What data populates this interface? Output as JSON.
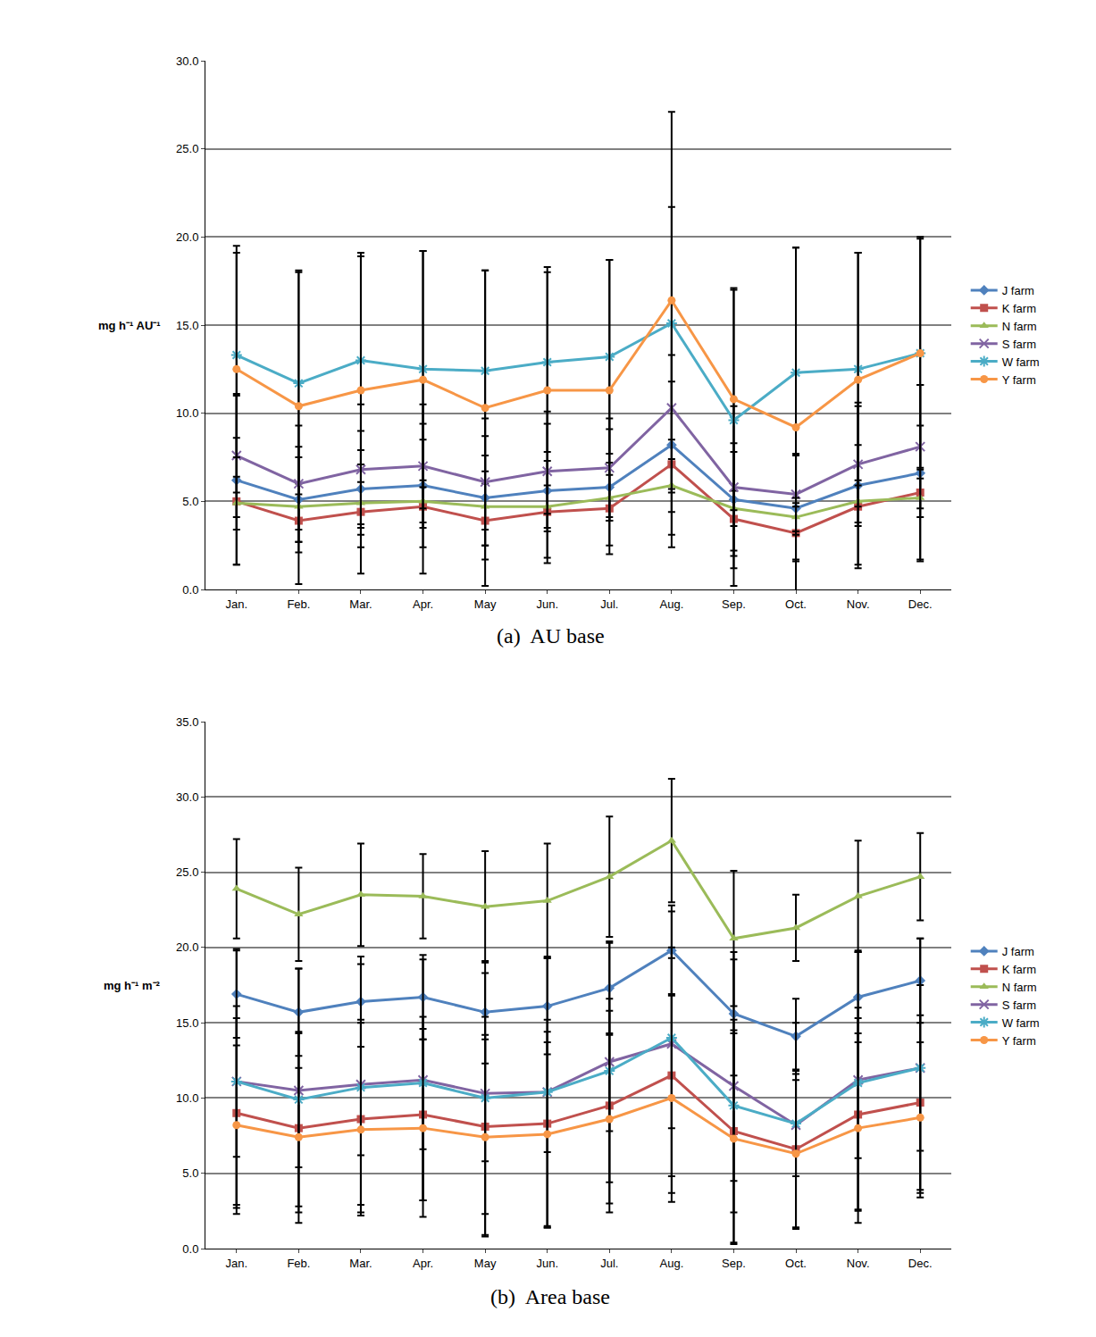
{
  "chart_data": [
    {
      "type": "line",
      "title": "(a)  AU base",
      "y_label": "mg h⁻¹ AU⁻¹",
      "categories": [
        "Jan.",
        "Feb.",
        "Mar.",
        "Apr.",
        "May",
        "Jun.",
        "Jul.",
        "Aug.",
        "Sep.",
        "Oct.",
        "Nov.",
        "Dec."
      ],
      "ylim": [
        0,
        30
      ],
      "yticks": [
        {
          "value": 0,
          "label": "0.0"
        },
        {
          "value": 5,
          "label": "5.0"
        },
        {
          "value": 10,
          "label": "10.0"
        },
        {
          "value": 15,
          "label": "15.0"
        },
        {
          "value": 20,
          "label": "20.0"
        },
        {
          "value": 25,
          "label": "25.0"
        },
        {
          "value": 30,
          "label": "30.0"
        }
      ],
      "grid": true,
      "legend": "right",
      "series": [
        {
          "name": "J farm",
          "color": "#4F81BD",
          "marker": "diamond",
          "values": [
            6.2,
            5.1,
            5.7,
            5.9,
            5.2,
            5.6,
            5.8,
            8.2,
            5.1,
            4.6,
            5.9,
            6.6
          ],
          "error": [
            4.8,
            3.0,
            3.3,
            3.5,
            3.5,
            3.8,
            3.3,
            5.1,
            3.2,
            3.0,
            4.5,
            5.0
          ]
        },
        {
          "name": "K farm",
          "color": "#C0504D",
          "marker": "square",
          "values": [
            5.0,
            3.9,
            4.4,
            4.7,
            3.9,
            4.4,
            4.6,
            7.1,
            4.0,
            3.2,
            4.7,
            5.5
          ],
          "error": [
            3.6,
            3.6,
            3.5,
            3.8,
            3.7,
            2.9,
            2.6,
            4.7,
            3.8,
            1.5,
            3.5,
            3.8
          ]
        },
        {
          "name": "N farm",
          "color": "#9BBB59",
          "marker": "triangle",
          "values": [
            4.9,
            4.7,
            4.9,
            5.0,
            4.7,
            4.7,
            5.2,
            5.9,
            4.6,
            4.1,
            5.0,
            5.2
          ],
          "error": [
            1.5,
            1.3,
            1.2,
            1.2,
            1.3,
            1.2,
            1.3,
            1.5,
            1.0,
            0.8,
            1.2,
            1.1
          ]
        },
        {
          "name": "S farm",
          "color": "#8064A2",
          "marker": "x",
          "values": [
            7.6,
            6.0,
            6.8,
            7.0,
            6.1,
            6.7,
            6.9,
            10.3,
            5.8,
            5.4,
            7.1,
            8.1
          ],
          "error": [
            3.5,
            3.3,
            3.7,
            3.5,
            3.6,
            3.4,
            2.8,
            4.8,
            4.6,
            2.3,
            3.5,
            3.5
          ]
        },
        {
          "name": "W farm",
          "color": "#4BACC6",
          "marker": "asterisk",
          "values": [
            13.3,
            11.7,
            13.0,
            12.5,
            12.4,
            12.9,
            13.2,
            15.1,
            9.6,
            12.3,
            12.5,
            13.4
          ],
          "error": [
            5.8,
            6.3,
            5.9,
            6.7,
            5.7,
            5.1,
            5.5,
            6.6,
            7.4,
            7.1,
            6.6,
            6.6
          ]
        },
        {
          "name": "Y farm",
          "color": "#F79646",
          "marker": "circle",
          "values": [
            12.5,
            10.4,
            11.3,
            11.9,
            10.3,
            11.3,
            11.3,
            16.4,
            10.8,
            9.2,
            11.9,
            13.4
          ],
          "error": [
            7.0,
            7.7,
            7.8,
            7.3,
            7.8,
            7.0,
            7.4,
            10.7,
            6.3,
            10.2,
            7.2,
            6.5
          ]
        }
      ]
    },
    {
      "type": "line",
      "title": "(b)  Area base",
      "y_label": "mg h⁻¹ m⁻²",
      "categories": [
        "Jan.",
        "Feb.",
        "Mar.",
        "Apr.",
        "May",
        "Jun.",
        "Jul.",
        "Aug.",
        "Sep.",
        "Oct.",
        "Nov.",
        "Dec."
      ],
      "ylim": [
        0,
        35
      ],
      "yticks": [
        {
          "value": 0,
          "label": "0.0"
        },
        {
          "value": 5,
          "label": "5.0"
        },
        {
          "value": 10,
          "label": "10.0"
        },
        {
          "value": 15,
          "label": "15.0"
        },
        {
          "value": 20,
          "label": "20.0"
        },
        {
          "value": 25,
          "label": "25.0"
        },
        {
          "value": 30,
          "label": "30.0"
        },
        {
          "value": 35,
          "label": "35.0"
        }
      ],
      "grid": true,
      "legend": "right",
      "series": [
        {
          "name": "J farm",
          "color": "#4F81BD",
          "marker": "diamond",
          "values": [
            16.9,
            15.7,
            16.4,
            16.7,
            15.7,
            16.1,
            17.3,
            19.8,
            15.6,
            14.1,
            16.7,
            17.8
          ],
          "error": [
            2.9,
            2.9,
            3.0,
            2.8,
            3.4,
            3.2,
            3.0,
            3.0,
            4.1,
            2.5,
            3.0,
            2.8
          ]
        },
        {
          "name": "K farm",
          "color": "#C0504D",
          "marker": "square",
          "values": [
            9.0,
            8.0,
            8.6,
            8.9,
            8.1,
            8.3,
            9.5,
            11.5,
            7.8,
            6.6,
            8.9,
            9.7
          ],
          "error": [
            6.3,
            6.3,
            6.4,
            5.7,
            7.3,
            6.9,
            7.1,
            7.8,
            7.4,
            5.3,
            6.4,
            5.8
          ]
        },
        {
          "name": "N farm",
          "color": "#9BBB59",
          "marker": "triangle",
          "values": [
            23.9,
            22.2,
            23.5,
            23.4,
            22.7,
            23.1,
            24.7,
            27.1,
            20.6,
            21.3,
            23.4,
            24.7
          ],
          "error": [
            3.3,
            3.1,
            3.4,
            2.8,
            3.7,
            3.8,
            4.0,
            4.1,
            4.5,
            2.2,
            3.7,
            2.9
          ]
        },
        {
          "name": "S farm",
          "color": "#8064A2",
          "marker": "x",
          "values": [
            11.1,
            10.5,
            10.9,
            11.2,
            10.3,
            10.4,
            12.4,
            13.6,
            10.8,
            8.2,
            11.2,
            12.0
          ],
          "error": [
            8.8,
            8.1,
            8.0,
            8.0,
            8.0,
            9.0,
            8.0,
            8.8,
            8.4,
            6.8,
            8.6,
            8.6
          ]
        },
        {
          "name": "W farm",
          "color": "#4BACC6",
          "marker": "asterisk",
          "values": [
            11.1,
            9.9,
            10.7,
            11.0,
            10.0,
            10.4,
            11.8,
            14.0,
            9.5,
            8.3,
            11.0,
            12.0
          ],
          "error": [
            5.0,
            4.5,
            4.5,
            4.4,
            4.2,
            4.0,
            4.0,
            6.0,
            5.0,
            3.5,
            5.0,
            5.5
          ]
        },
        {
          "name": "Y farm",
          "color": "#F79646",
          "marker": "circle",
          "values": [
            8.2,
            7.4,
            7.9,
            8.0,
            7.4,
            7.6,
            8.6,
            10.0,
            7.3,
            6.3,
            8.0,
            8.7
          ],
          "error": [
            5.3,
            4.6,
            5.5,
            5.9,
            6.5,
            6.1,
            5.6,
            6.9,
            7.0,
            4.9,
            6.3,
            5.0
          ]
        }
      ]
    }
  ]
}
